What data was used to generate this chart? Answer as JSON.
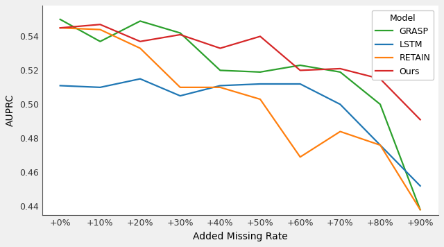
{
  "x_labels": [
    "+0%",
    "+10%",
    "+20%",
    "+30%",
    "+40%",
    "+50%",
    "+60%",
    "+70%",
    "+80%",
    "+90%"
  ],
  "x_values": [
    0,
    1,
    2,
    3,
    4,
    5,
    6,
    7,
    8,
    9
  ],
  "GRASP": [
    0.55,
    0.537,
    0.549,
    0.542,
    0.52,
    0.519,
    0.523,
    0.519,
    0.5,
    0.438
  ],
  "LSTM": [
    0.511,
    0.51,
    0.515,
    0.505,
    0.511,
    0.512,
    0.512,
    0.5,
    0.476,
    0.452
  ],
  "RETAIN": [
    0.545,
    0.544,
    0.533,
    0.51,
    0.51,
    0.503,
    0.469,
    0.484,
    0.476,
    0.438
  ],
  "Ours": [
    0.545,
    0.547,
    0.537,
    0.541,
    0.533,
    0.54,
    0.52,
    0.521,
    0.515,
    0.491
  ],
  "colors": {
    "GRASP": "#2ca02c",
    "LSTM": "#1f77b4",
    "RETAIN": "#ff7f0e",
    "Ours": "#d62728"
  },
  "ylabel": "AUPRC",
  "xlabel": "Added Missing Rate",
  "legend_title": "Model",
  "ylim": [
    0.435,
    0.558
  ],
  "yticks": [
    0.44,
    0.46,
    0.48,
    0.5,
    0.52,
    0.54
  ],
  "linewidth": 1.6,
  "figsize": [
    6.4,
    3.56
  ],
  "dpi": 100,
  "bg_color": "#f0f0f0",
  "plot_bg_color": "#ffffff"
}
